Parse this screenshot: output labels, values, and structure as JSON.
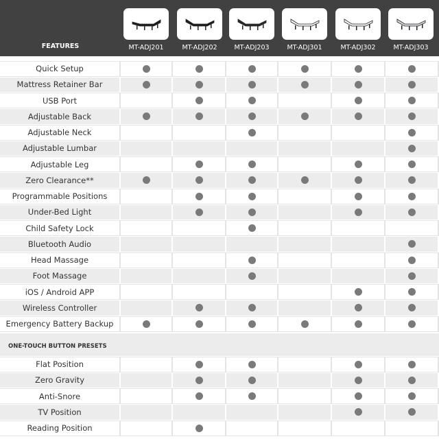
{
  "header": {
    "features_label": "FEATURES",
    "products": [
      {
        "name": "MT-ADJ201",
        "bed_color": "#1e1e1e",
        "style": "flat"
      },
      {
        "name": "MT-ADJ202",
        "bed_color": "#1e1e1e",
        "style": "raised"
      },
      {
        "name": "MT-ADJ203",
        "bed_color": "#2a2a2a",
        "style": "raised"
      },
      {
        "name": "MT-ADJ301",
        "bed_color": "#f4f4f4",
        "style": "white"
      },
      {
        "name": "MT-ADJ302",
        "bed_color": "#f4f4f4",
        "style": "white"
      },
      {
        "name": "MT-ADJ303",
        "bed_color": "#d8d8e0",
        "style": "white"
      }
    ]
  },
  "dot_color": "#7a7a7a",
  "features": [
    {
      "label": "Quick Setup",
      "has": [
        1,
        1,
        1,
        1,
        1,
        1
      ]
    },
    {
      "label": "Mattress Retainer Bar",
      "has": [
        1,
        1,
        1,
        1,
        1,
        1
      ]
    },
    {
      "label": "USB Port",
      "has": [
        0,
        1,
        1,
        0,
        1,
        1
      ]
    },
    {
      "label": "Adjustable Back",
      "has": [
        1,
        1,
        1,
        1,
        1,
        1
      ]
    },
    {
      "label": "Adjustable Neck",
      "has": [
        0,
        0,
        1,
        0,
        0,
        1
      ]
    },
    {
      "label": "Adjustable Lumbar",
      "has": [
        0,
        0,
        0,
        0,
        0,
        1
      ]
    },
    {
      "label": "Adjustable Leg",
      "has": [
        0,
        1,
        1,
        0,
        1,
        1
      ]
    },
    {
      "label": "Zero Clearance**",
      "has": [
        1,
        1,
        1,
        1,
        1,
        1
      ]
    },
    {
      "label": "Programmable Positions",
      "has": [
        0,
        1,
        1,
        0,
        1,
        1
      ]
    },
    {
      "label": "Under-Bed Light",
      "has": [
        0,
        1,
        1,
        0,
        1,
        1
      ]
    },
    {
      "label": "Child Safety Lock",
      "has": [
        0,
        0,
        1,
        0,
        0,
        0
      ]
    },
    {
      "label": "Bluetooth Audio",
      "has": [
        0,
        0,
        0,
        0,
        0,
        1
      ]
    },
    {
      "label": "Head Massage",
      "has": [
        0,
        0,
        1,
        0,
        0,
        1
      ]
    },
    {
      "label": "Foot Massage",
      "has": [
        0,
        0,
        1,
        0,
        0,
        1
      ]
    },
    {
      "label": "iOS / Android APP",
      "has": [
        0,
        0,
        0,
        0,
        1,
        1
      ]
    },
    {
      "label": "Wireless Controller",
      "has": [
        0,
        1,
        1,
        0,
        1,
        1
      ]
    },
    {
      "label": "Emergency Battery Backup",
      "has": [
        1,
        1,
        1,
        1,
        1,
        1
      ]
    }
  ],
  "presets_section": {
    "title": "ONE-TOUCH BUTTON PRESETS",
    "rows": [
      {
        "label": "Flat Position",
        "has": [
          0,
          1,
          1,
          0,
          1,
          1
        ]
      },
      {
        "label": "Zero Gravity",
        "has": [
          0,
          1,
          1,
          0,
          1,
          1
        ]
      },
      {
        "label": "Anti-Snore",
        "has": [
          0,
          1,
          1,
          0,
          1,
          1
        ]
      },
      {
        "label": "TV Position",
        "has": [
          0,
          0,
          0,
          0,
          1,
          1
        ]
      },
      {
        "label": "Reading Position",
        "has": [
          0,
          1,
          0,
          0,
          0,
          0
        ]
      }
    ]
  }
}
